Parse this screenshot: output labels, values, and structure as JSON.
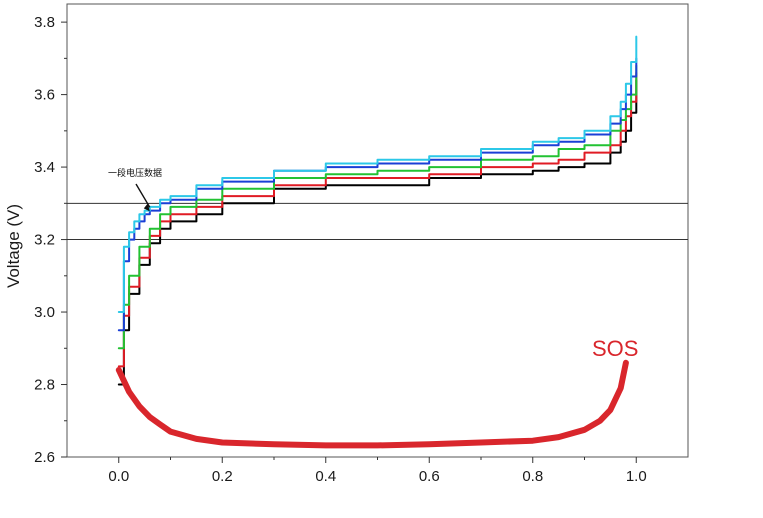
{
  "chart_data": {
    "type": "line",
    "title": "",
    "xlabel": "",
    "ylabel": "Voltage (V)",
    "xlim": [
      -0.1,
      1.1
    ],
    "ylim": [
      2.6,
      3.85
    ],
    "x_ticks": [
      "0.0",
      "0.2",
      "0.4",
      "0.6",
      "0.8",
      "1.0"
    ],
    "y_ticks": [
      "2.6",
      "2.8",
      "3.0",
      "3.2",
      "3.4",
      "3.6",
      "3.8"
    ],
    "grid": false,
    "legend": "none",
    "reference_lines": [
      {
        "name": "upper-reference-line",
        "y": 3.3
      },
      {
        "name": "lower-reference-line",
        "y": 3.2
      }
    ],
    "series": [
      {
        "color": "#000000",
        "x": [
          0.0,
          0.01,
          0.02,
          0.04,
          0.06,
          0.08,
          0.1,
          0.15,
          0.2,
          0.3,
          0.4,
          0.5,
          0.6,
          0.7,
          0.8,
          0.85,
          0.9,
          0.95,
          0.97,
          0.98,
          0.99,
          1.0
        ],
        "y": [
          2.8,
          2.95,
          3.05,
          3.13,
          3.19,
          3.23,
          3.25,
          3.27,
          3.3,
          3.34,
          3.35,
          3.35,
          3.37,
          3.38,
          3.39,
          3.4,
          3.41,
          3.44,
          3.47,
          3.5,
          3.55,
          3.64
        ]
      },
      {
        "color": "#e01b24",
        "x": [
          0.0,
          0.01,
          0.02,
          0.04,
          0.06,
          0.08,
          0.1,
          0.15,
          0.2,
          0.3,
          0.4,
          0.5,
          0.6,
          0.7,
          0.8,
          0.85,
          0.9,
          0.95,
          0.97,
          0.98,
          0.99,
          1.0
        ],
        "y": [
          2.85,
          2.99,
          3.07,
          3.15,
          3.21,
          3.25,
          3.27,
          3.29,
          3.32,
          3.35,
          3.37,
          3.37,
          3.38,
          3.4,
          3.41,
          3.42,
          3.44,
          3.46,
          3.5,
          3.54,
          3.58,
          3.66
        ]
      },
      {
        "color": "#22c232",
        "x": [
          0.0,
          0.01,
          0.02,
          0.04,
          0.06,
          0.08,
          0.1,
          0.15,
          0.2,
          0.3,
          0.4,
          0.5,
          0.6,
          0.7,
          0.8,
          0.85,
          0.9,
          0.95,
          0.97,
          0.98,
          0.99,
          1.0
        ],
        "y": [
          2.9,
          3.02,
          3.1,
          3.18,
          3.23,
          3.27,
          3.29,
          3.31,
          3.34,
          3.37,
          3.38,
          3.39,
          3.4,
          3.42,
          3.43,
          3.45,
          3.46,
          3.5,
          3.53,
          3.56,
          3.6,
          3.68
        ]
      },
      {
        "color": "#1a3fd6",
        "x": [
          0.0,
          0.01,
          0.02,
          0.03,
          0.04,
          0.05,
          0.06,
          0.08,
          0.1,
          0.15,
          0.2,
          0.3,
          0.4,
          0.5,
          0.6,
          0.7,
          0.8,
          0.85,
          0.9,
          0.95,
          0.97,
          0.98,
          0.99,
          1.0
        ],
        "y": [
          2.95,
          3.14,
          3.2,
          3.23,
          3.25,
          3.27,
          3.28,
          3.3,
          3.31,
          3.34,
          3.36,
          3.39,
          3.4,
          3.41,
          3.42,
          3.44,
          3.46,
          3.47,
          3.49,
          3.52,
          3.56,
          3.6,
          3.65,
          3.7
        ]
      },
      {
        "color": "#2cc8e8",
        "x": [
          0.0,
          0.01,
          0.02,
          0.03,
          0.04,
          0.05,
          0.06,
          0.08,
          0.1,
          0.15,
          0.2,
          0.3,
          0.4,
          0.5,
          0.6,
          0.7,
          0.8,
          0.85,
          0.9,
          0.95,
          0.97,
          0.98,
          0.99,
          1.0
        ],
        "y": [
          3.0,
          3.18,
          3.22,
          3.25,
          3.27,
          3.28,
          3.29,
          3.31,
          3.32,
          3.35,
          3.37,
          3.39,
          3.41,
          3.42,
          3.43,
          3.45,
          3.47,
          3.48,
          3.5,
          3.54,
          3.58,
          3.63,
          3.69,
          3.76
        ]
      },
      {
        "name": "SOS",
        "color": "#d9262c",
        "x": [
          0.0,
          0.02,
          0.04,
          0.06,
          0.08,
          0.1,
          0.15,
          0.2,
          0.3,
          0.4,
          0.5,
          0.6,
          0.7,
          0.8,
          0.85,
          0.9,
          0.93,
          0.95,
          0.97,
          0.98
        ],
        "y": [
          2.84,
          2.78,
          2.74,
          2.71,
          2.69,
          2.67,
          2.65,
          2.64,
          2.635,
          2.632,
          2.632,
          2.635,
          2.64,
          2.645,
          2.655,
          2.675,
          2.7,
          2.73,
          2.79,
          2.86
        ]
      }
    ],
    "annotations": [
      {
        "text": "一段电压数据",
        "x": 0.06,
        "y": 3.3
      },
      {
        "text": "SOS",
        "x": 0.965,
        "y": 2.9
      }
    ]
  }
}
